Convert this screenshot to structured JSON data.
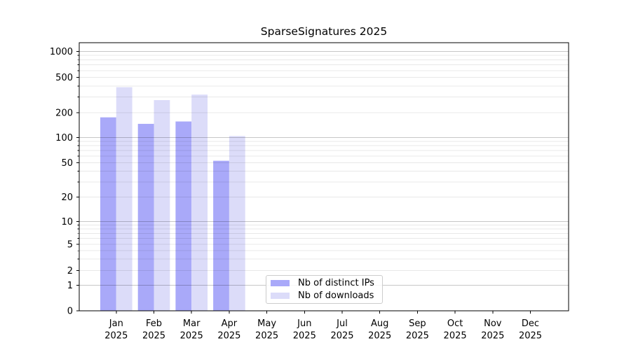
{
  "chart_data": {
    "type": "bar",
    "title": "SparseSignatures 2025",
    "xlabel": "",
    "ylabel": "",
    "scale": "symlog",
    "grid": true,
    "yticks": [
      0,
      1,
      2,
      5,
      10,
      20,
      50,
      100,
      200,
      500,
      1000
    ],
    "ylim": [
      0,
      1280
    ],
    "categories": [
      "Jan 2025",
      "Feb 2025",
      "Mar 2025",
      "Apr 2025",
      "May 2025",
      "Jun 2025",
      "Jul 2025",
      "Aug 2025",
      "Sep 2025",
      "Oct 2025",
      "Nov 2025",
      "Dec 2025"
    ],
    "series": [
      {
        "name": "Nb of distinct IPs",
        "color": "#a9a9f9",
        "values": [
          175,
          146,
          156,
          53,
          null,
          null,
          null,
          null,
          null,
          null,
          null,
          null
        ]
      },
      {
        "name": "Nb of downloads",
        "color": "#dcdcf9",
        "values": [
          388,
          277,
          320,
          104,
          null,
          null,
          null,
          null,
          null,
          null,
          null,
          null
        ]
      }
    ],
    "legend": {
      "location": "lower center",
      "items": [
        "Nb of distinct IPs",
        "Nb of downloads"
      ]
    },
    "colors": {
      "axis": "#000000",
      "grid_major": "rgba(0,0,0,0.22)",
      "grid_minor": "rgba(0,0,0,0.09)",
      "background": "#ffffff"
    }
  }
}
